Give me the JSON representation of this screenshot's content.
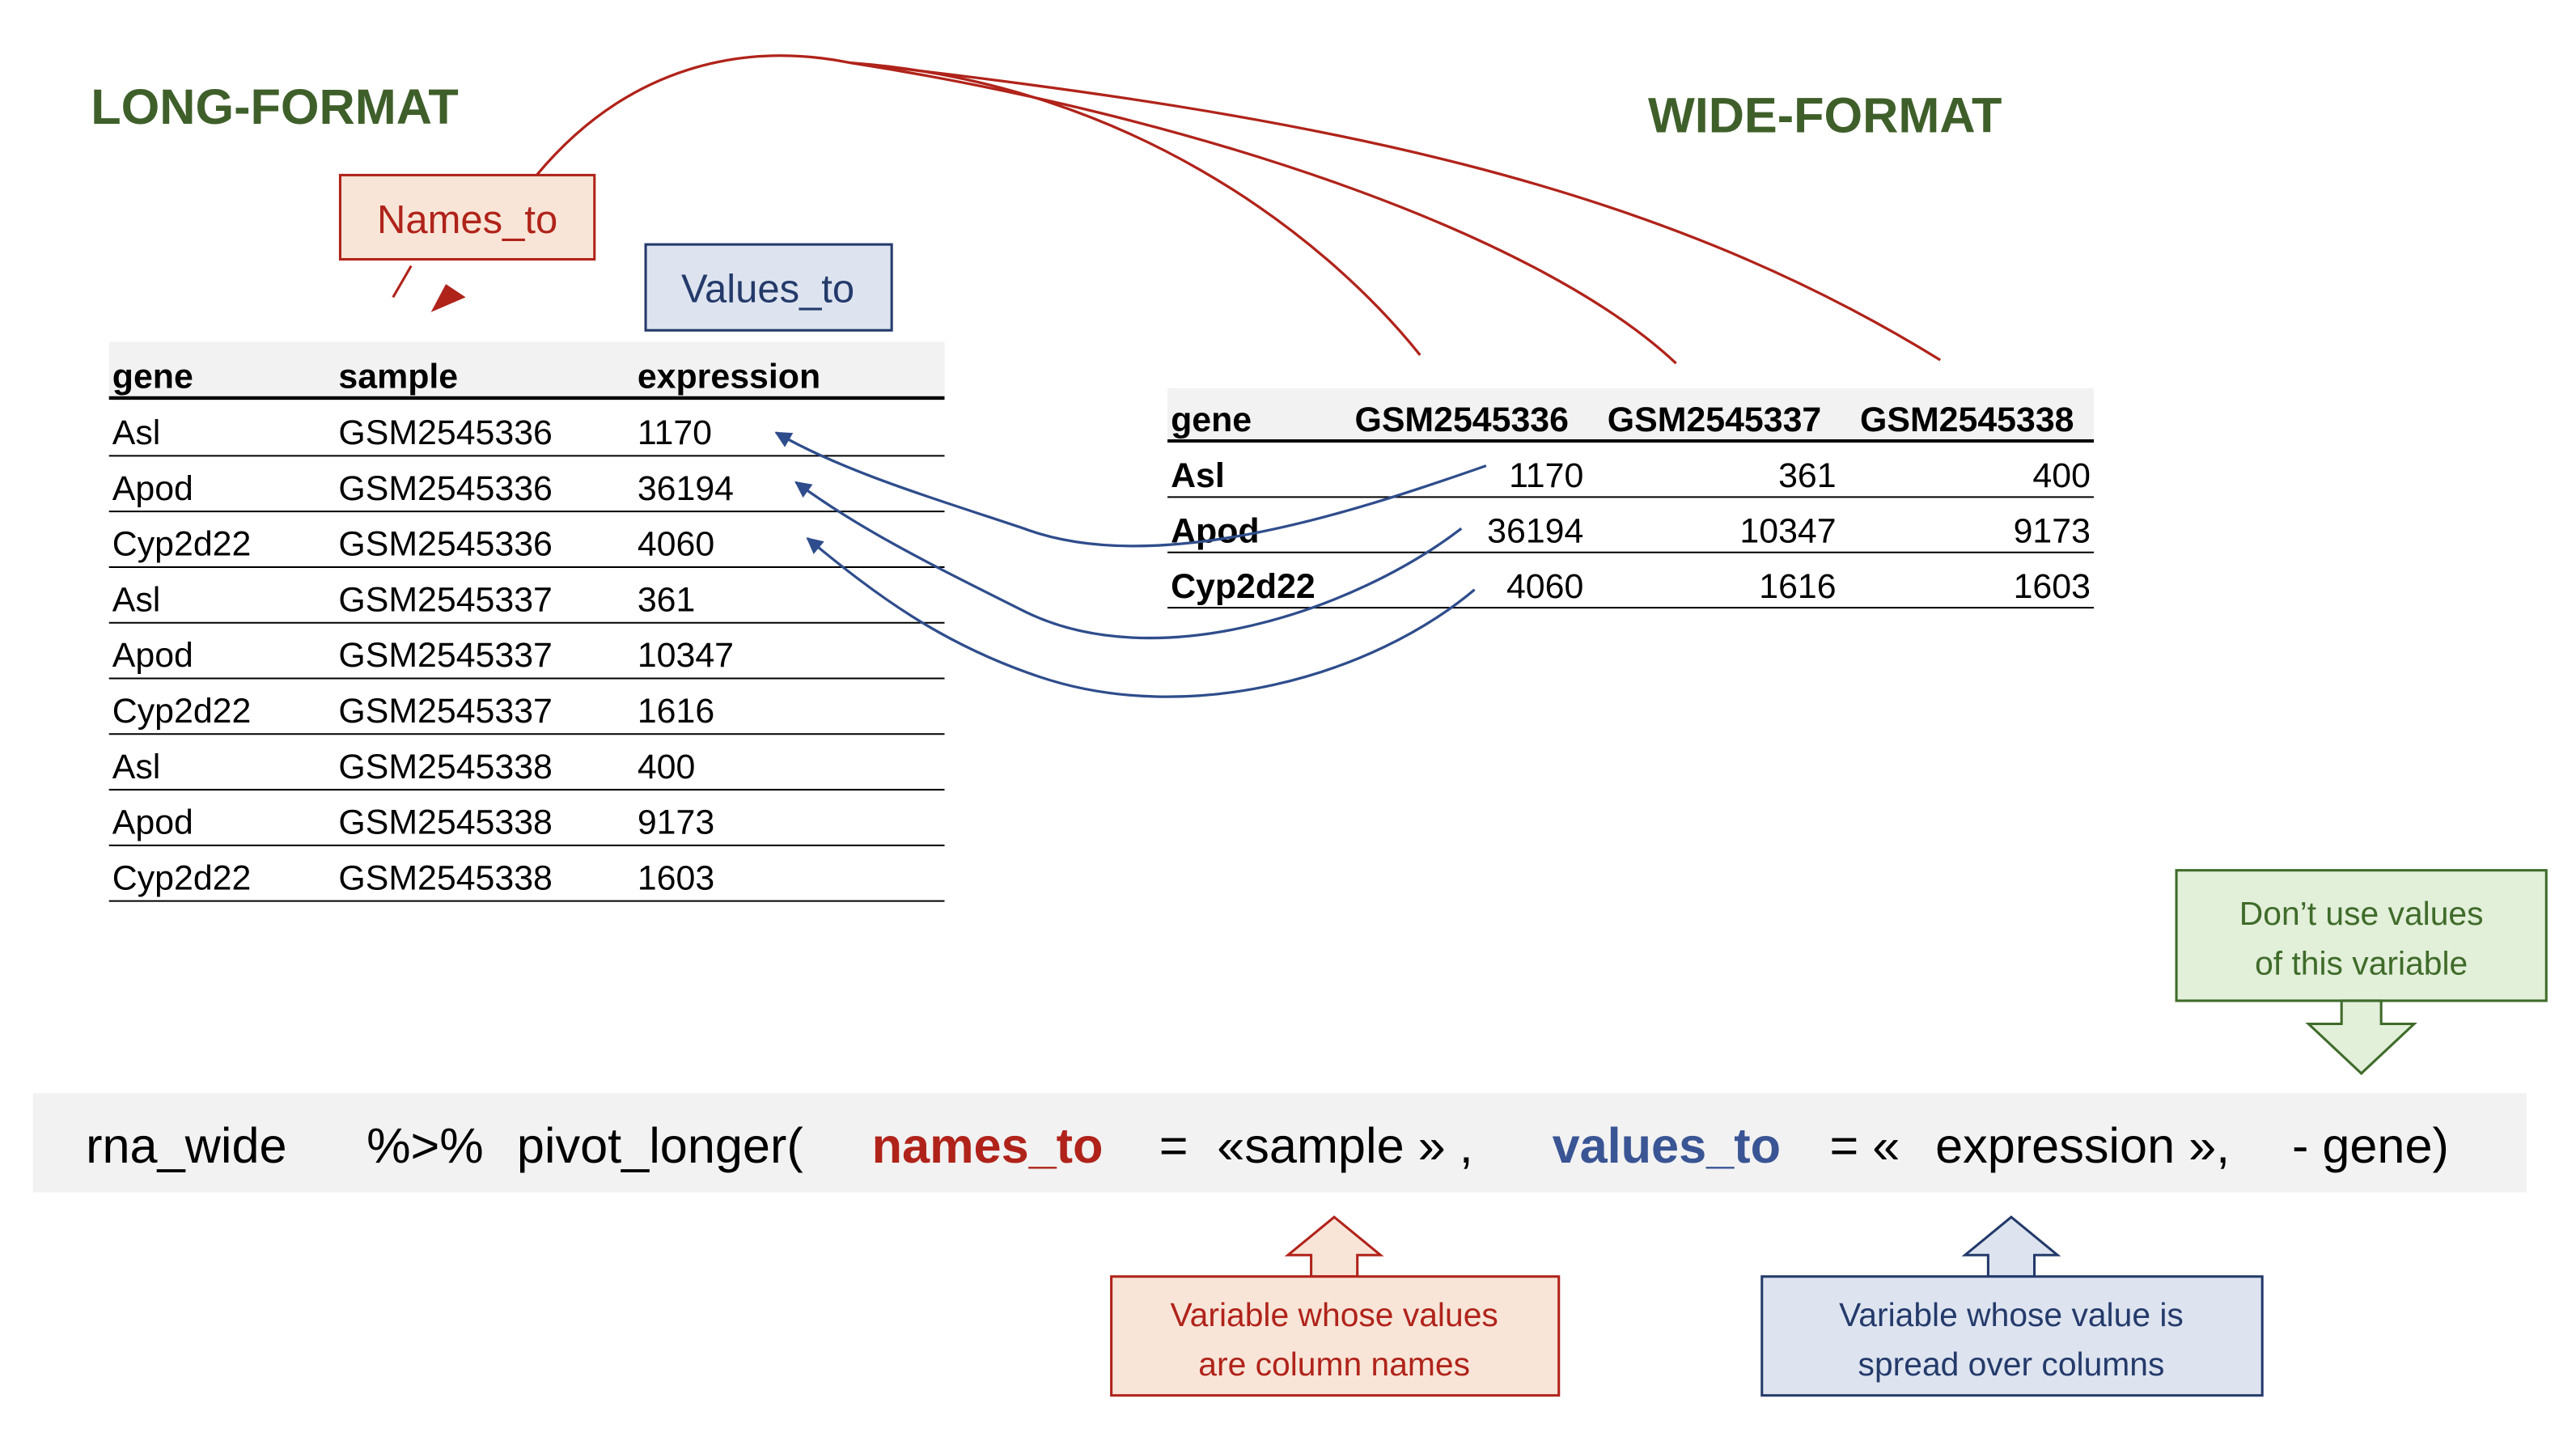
{
  "long_title": "LONG-FORMAT",
  "wide_title": "WIDE-FORMAT",
  "names_to_label": "Names_to",
  "values_to_label": "Values_to",
  "long_table": {
    "headers": [
      "gene",
      "sample",
      "expression"
    ],
    "rows": [
      [
        "Asl",
        "GSM2545336",
        "1170"
      ],
      [
        "Apod",
        "GSM2545336",
        "36194"
      ],
      [
        "Cyp2d22",
        "GSM2545336",
        "4060"
      ],
      [
        "Asl",
        "GSM2545337",
        "361"
      ],
      [
        "Apod",
        "GSM2545337",
        "10347"
      ],
      [
        "Cyp2d22",
        "GSM2545337",
        "1616"
      ],
      [
        "Asl",
        "GSM2545338",
        "400"
      ],
      [
        "Apod",
        "GSM2545338",
        "9173"
      ],
      [
        "Cyp2d22",
        "GSM2545338",
        "1603"
      ]
    ]
  },
  "wide_table": {
    "headers": [
      "gene",
      "GSM2545336",
      "GSM2545337",
      "GSM2545338"
    ],
    "rows": [
      [
        "Asl",
        "1170",
        "361",
        "400"
      ],
      [
        "Apod",
        "36194",
        "10347",
        "9173"
      ],
      [
        "Cyp2d22",
        "4060",
        "1616",
        "1603"
      ]
    ]
  },
  "code": {
    "t1": "rna_wide",
    "t2": "%>%",
    "t3": "pivot_longer(",
    "names_to": "names_to",
    "t4": "=",
    "t5": "«sample » ,",
    "values_to": "values_to",
    "t6": "= «",
    "t7": "expression »,",
    "t8": "- gene)"
  },
  "callouts": {
    "green": [
      "Don’t use values",
      "of this variable"
    ],
    "red": [
      "Variable whose values",
      "are column names"
    ],
    "blue": [
      "Variable whose value is",
      "spread over columns"
    ]
  },
  "colors": {
    "title_green": "#3f5f2a",
    "names_red": "#b0231a",
    "values_blue": "#3a5594",
    "red_fill": "#f8e5d8",
    "blue_fill": "#dde4f0",
    "green_fill": "#e2efd9",
    "code_bg": "#f2f2f2"
  }
}
